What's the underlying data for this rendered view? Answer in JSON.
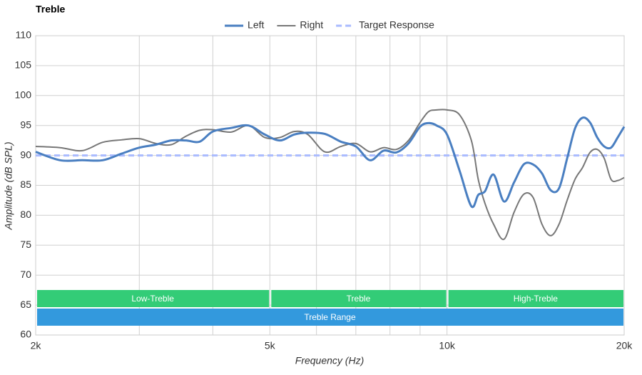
{
  "chart_data": {
    "type": "line",
    "title": "Treble",
    "xlabel": "Frequency (Hz)",
    "ylabel": "Amplitude (dB SPL)",
    "xscale": "log",
    "xlim": [
      2000,
      20000
    ],
    "ylim": [
      60,
      110
    ],
    "xticks": [
      {
        "value": 2000,
        "label": "2k"
      },
      {
        "value": 5000,
        "label": "5k"
      },
      {
        "value": 10000,
        "label": "10k"
      },
      {
        "value": 20000,
        "label": "20k"
      }
    ],
    "xminor": [
      3000,
      4000,
      6000,
      7000,
      8000,
      9000
    ],
    "yticks": [
      60,
      65,
      70,
      75,
      80,
      85,
      90,
      95,
      100,
      105,
      110
    ],
    "grid": true,
    "legend": "top",
    "x": [
      2000,
      2200,
      2400,
      2600,
      2800,
      3000,
      3200,
      3400,
      3600,
      3800,
      4000,
      4300,
      4600,
      4900,
      5200,
      5500,
      5800,
      6200,
      6600,
      7000,
      7400,
      7800,
      8200,
      8600,
      9000,
      9300,
      9600,
      10000,
      10500,
      11000,
      11300,
      11600,
      12000,
      12500,
      13000,
      13500,
      14000,
      14500,
      15000,
      15500,
      16000,
      16500,
      17000,
      17500,
      18000,
      18500,
      19000,
      19500,
      20000
    ],
    "series": [
      {
        "name": "Left",
        "color": "#4a7fc1",
        "width": 3,
        "values": [
          90.6,
          89.2,
          89.2,
          89.2,
          90.3,
          91.3,
          91.8,
          92.5,
          92.5,
          92.3,
          94.0,
          94.6,
          95.0,
          93.5,
          92.5,
          93.5,
          93.8,
          93.6,
          92.3,
          91.5,
          89.2,
          90.8,
          90.5,
          92.0,
          94.8,
          95.4,
          95.0,
          93.5,
          87.5,
          81.5,
          83.4,
          84.0,
          86.8,
          82.3,
          85.5,
          88.5,
          88.5,
          87.0,
          84.2,
          84.5,
          89.5,
          94.5,
          96.3,
          95.5,
          93.0,
          91.5,
          91.3,
          93.0,
          94.8
        ]
      },
      {
        "name": "Right",
        "color": "#777777",
        "width": 2,
        "values": [
          91.5,
          91.3,
          90.8,
          92.2,
          92.6,
          92.8,
          92.0,
          91.8,
          93.2,
          94.2,
          94.3,
          93.9,
          95.0,
          93.0,
          93.0,
          94.0,
          93.5,
          90.6,
          91.5,
          92.0,
          90.6,
          91.3,
          91.0,
          92.5,
          95.5,
          97.3,
          97.6,
          97.6,
          96.8,
          92.5,
          86.0,
          82.0,
          78.5,
          76.0,
          80.5,
          83.5,
          83.0,
          78.5,
          76.6,
          78.5,
          82.5,
          86.0,
          88.0,
          90.5,
          91.0,
          89.5,
          86.0,
          85.8,
          86.3
        ]
      }
    ],
    "target": {
      "name": "Target Response",
      "color": "#aabbff",
      "value": 90
    },
    "bands": [
      {
        "label": "Low-Treble",
        "start": 2000,
        "end": 5000,
        "row": 0,
        "color": "#33cc77"
      },
      {
        "label": "Treble",
        "start": 5000,
        "end": 10000,
        "row": 0,
        "color": "#33cc77"
      },
      {
        "label": "High-Treble",
        "start": 10000,
        "end": 20000,
        "row": 0,
        "color": "#33cc77"
      },
      {
        "label": "Treble Range",
        "start": 2000,
        "end": 20000,
        "row": 1,
        "color": "#3399dd"
      }
    ]
  }
}
